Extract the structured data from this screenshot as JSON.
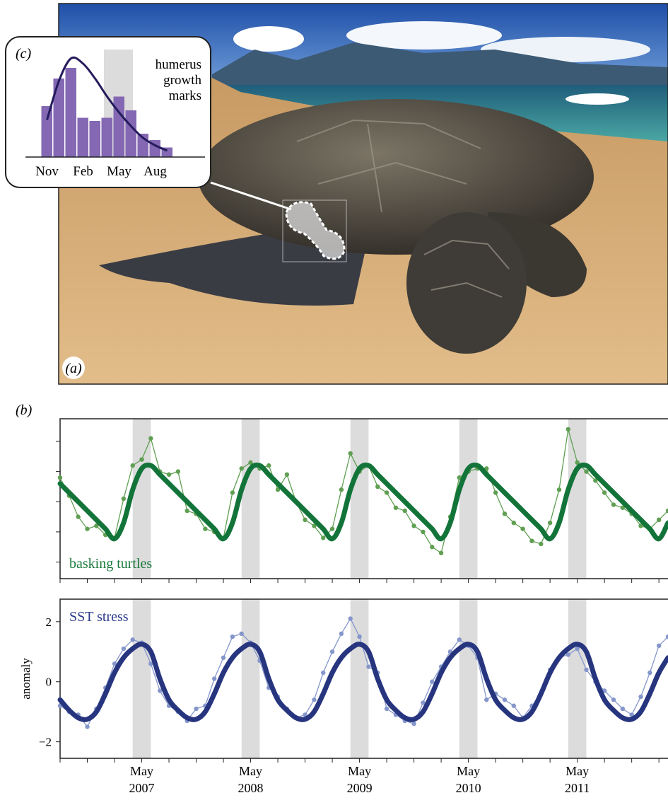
{
  "photo": {
    "label": "(a)"
  },
  "chart_data": [
    {
      "type": "bar",
      "panel_label": "(c)",
      "annotation": [
        "humerus",
        "growth",
        "marks"
      ],
      "categories": [
        "Nov",
        null,
        null,
        "Feb",
        null,
        null,
        "May",
        null,
        null,
        "Aug",
        null
      ],
      "values": [
        48,
        74,
        84,
        37,
        34,
        37,
        57,
        44,
        22,
        16,
        9
      ],
      "fit": [
        35,
        72,
        93,
        88,
        74,
        57,
        42,
        29,
        18,
        11,
        6
      ],
      "color": "#8468b3",
      "fit_color": "#241c5c"
    },
    {
      "type": "line",
      "panel_label": "(b)",
      "label": "basking turtles",
      "color": "#5f9f52",
      "fit_color": "#13743a",
      "label_color": "#1a7a3c",
      "xlim": [
        "2006-08",
        "2012-03"
      ],
      "ylim": [
        -2.55,
        2.75
      ],
      "yticks": [
        -2,
        -1,
        0,
        1,
        2
      ],
      "show_tick_labels": false,
      "shaded_periods": [
        [
          "2007-04",
          "2007-06"
        ],
        [
          "2008-04",
          "2008-06"
        ],
        [
          "2009-04",
          "2009-06"
        ],
        [
          "2010-04",
          "2010-06"
        ],
        [
          "2011-04",
          "2011-06"
        ]
      ],
      "xticks": [
        "2006-08",
        "2006-11",
        "2007-02",
        "2007-05",
        "2007-08",
        "2007-11",
        "2008-02",
        "2008-05",
        "2008-08",
        "2008-11",
        "2009-02",
        "2009-05",
        "2009-08",
        "2009-11",
        "2010-02",
        "2010-05",
        "2010-08",
        "2010-11",
        "2011-02",
        "2011-05",
        "2011-08",
        "2011-11",
        "2012-02"
      ],
      "x": [
        "2006-08",
        "2006-09",
        "2006-10",
        "2006-11",
        "2006-12",
        "2007-01",
        "2007-02",
        "2007-03",
        "2007-04",
        "2007-05",
        "2007-06",
        "2007-07",
        "2007-08",
        "2007-09",
        "2007-10",
        "2007-11",
        "2007-12",
        "2008-01",
        "2008-02",
        "2008-03",
        "2008-04",
        "2008-05",
        "2008-06",
        "2008-07",
        "2008-08",
        "2008-09",
        "2008-10",
        "2008-11",
        "2008-12",
        "2009-01",
        "2009-02",
        "2009-03",
        "2009-04",
        "2009-05",
        "2009-06",
        "2009-07",
        "2009-08",
        "2009-09",
        "2009-10",
        "2009-11",
        "2009-12",
        "2010-01",
        "2010-02",
        "2010-03",
        "2010-04",
        "2010-05",
        "2010-06",
        "2010-07",
        "2010-08",
        "2010-09",
        "2010-10",
        "2010-11",
        "2010-12",
        "2011-01",
        "2011-02",
        "2011-03",
        "2011-04",
        "2011-05",
        "2011-06",
        "2011-07",
        "2011-08",
        "2011-09",
        "2011-10",
        "2011-11",
        "2011-12",
        "2012-01",
        "2012-02",
        "2012-03"
      ],
      "values": [
        0.8,
        0.2,
        -0.5,
        -0.9,
        -0.8,
        -1.1,
        -1.2,
        0.1,
        1.2,
        1.4,
        2.1,
        1.0,
        0.9,
        1.0,
        -0.3,
        -0.4,
        -0.9,
        -1.0,
        -1.2,
        0.3,
        1.1,
        1.3,
        1.1,
        1.2,
        0.4,
        0.9,
        0.0,
        -0.6,
        -0.8,
        -1.2,
        -0.9,
        0.4,
        1.6,
        1.0,
        1.2,
        0.5,
        0.3,
        -0.2,
        -0.3,
        -0.8,
        -1.0,
        -1.5,
        -1.7,
        -0.5,
        0.8,
        1.0,
        1.1,
        1.1,
        0.3,
        -0.4,
        -0.7,
        -0.9,
        -1.3,
        -1.4,
        -0.7,
        0.4,
        2.4,
        1.3,
        1.0,
        0.7,
        0.3,
        -0.1,
        -0.2,
        -0.4,
        -0.8,
        -0.9,
        -0.6,
        -0.3
      ],
      "fit": [
        0.6,
        0.3,
        0.0,
        -0.3,
        -0.6,
        -0.9,
        -1.23,
        -0.7,
        0.4,
        1.1,
        1.2,
        0.9,
        0.6,
        0.3,
        0.0,
        -0.3,
        -0.6,
        -0.9,
        -1.23,
        -0.7,
        0.4,
        1.1,
        1.2,
        0.9,
        0.6,
        0.3,
        0.0,
        -0.3,
        -0.6,
        -0.9,
        -1.23,
        -0.7,
        0.4,
        1.1,
        1.2,
        0.9,
        0.6,
        0.3,
        0.0,
        -0.3,
        -0.6,
        -0.9,
        -1.23,
        -0.7,
        0.4,
        1.1,
        1.2,
        0.9,
        0.6,
        0.3,
        0.0,
        -0.3,
        -0.6,
        -0.9,
        -1.23,
        -0.7,
        0.4,
        1.1,
        1.2,
        0.9,
        0.6,
        0.3,
        0.0,
        -0.3,
        -0.6,
        -0.9,
        -1.23,
        -0.7
      ]
    },
    {
      "type": "line",
      "label": "SST stress",
      "ylabel": "anomaly",
      "color": "#8596cb",
      "fit_color": "#27357f",
      "label_color": "#2b3a8c",
      "xlim": [
        "2006-08",
        "2012-03"
      ],
      "ylim": [
        -2.55,
        2.75
      ],
      "yticks": [
        {
          "value": -2,
          "label": "−2"
        },
        0,
        2
      ],
      "show_tick_labels": true,
      "shaded_periods": [
        [
          "2007-04",
          "2007-06"
        ],
        [
          "2008-04",
          "2008-06"
        ],
        [
          "2009-04",
          "2009-06"
        ],
        [
          "2010-04",
          "2010-06"
        ],
        [
          "2011-04",
          "2011-06"
        ]
      ],
      "xticks": [
        "2006-08",
        "2006-11",
        "2007-02",
        {
          "value": "2007-05",
          "label": "May 2007"
        },
        "2007-08",
        "2007-11",
        "2008-02",
        {
          "value": "2008-05",
          "label": "May 2008"
        },
        "2008-08",
        "2008-11",
        "2009-02",
        {
          "value": "2009-05",
          "label": "May 2009"
        },
        "2009-08",
        "2009-11",
        "2010-02",
        {
          "value": "2010-05",
          "label": "May 2010"
        },
        "2010-08",
        "2010-11",
        "2011-02",
        {
          "value": "2011-05",
          "label": "May 2011"
        },
        "2011-08",
        "2011-11",
        "2012-02"
      ],
      "x": [
        "2006-08",
        "2006-09",
        "2006-10",
        "2006-11",
        "2006-12",
        "2007-01",
        "2007-02",
        "2007-03",
        "2007-04",
        "2007-05",
        "2007-06",
        "2007-07",
        "2007-08",
        "2007-09",
        "2007-10",
        "2007-11",
        "2007-12",
        "2008-01",
        "2008-02",
        "2008-03",
        "2008-04",
        "2008-05",
        "2008-06",
        "2008-07",
        "2008-08",
        "2008-09",
        "2008-10",
        "2008-11",
        "2008-12",
        "2009-01",
        "2009-02",
        "2009-03",
        "2009-04",
        "2009-05",
        "2009-06",
        "2009-07",
        "2009-08",
        "2009-09",
        "2009-10",
        "2009-11",
        "2009-12",
        "2010-01",
        "2010-02",
        "2010-03",
        "2010-04",
        "2010-05",
        "2010-06",
        "2010-07",
        "2010-08",
        "2010-09",
        "2010-10",
        "2010-11",
        "2010-12",
        "2011-01",
        "2011-02",
        "2011-03",
        "2011-04",
        "2011-05",
        "2011-06",
        "2011-07",
        "2011-08",
        "2011-09",
        "2011-10",
        "2011-11",
        "2011-12",
        "2012-01",
        "2012-02",
        "2012-03"
      ],
      "values": [
        -0.8,
        -1.0,
        -1.1,
        -1.5,
        -0.9,
        -0.2,
        0.6,
        1.1,
        1.4,
        1.3,
        0.6,
        -0.3,
        -0.8,
        -1.0,
        -1.3,
        -0.9,
        -0.8,
        0.1,
        0.8,
        1.5,
        1.6,
        1.3,
        0.7,
        -0.2,
        -0.5,
        -0.9,
        -1.2,
        -1.1,
        -0.6,
        0.3,
        1.0,
        1.6,
        2.1,
        1.5,
        0.5,
        0.3,
        -0.9,
        -1.1,
        -1.3,
        -1.4,
        -0.7,
        0.0,
        0.5,
        1.0,
        1.4,
        1.2,
        0.8,
        -0.6,
        -0.4,
        -0.6,
        -0.8,
        -1.2,
        -0.8,
        -0.4,
        0.4,
        0.8,
        0.9,
        1.1,
        0.4,
        0.0,
        -0.3,
        -0.6,
        -0.9,
        -1.1,
        -0.5,
        0.3,
        1.2,
        1.5
      ],
      "fit": [
        -0.6,
        -0.95,
        -1.2,
        -1.25,
        -1.0,
        -0.4,
        0.3,
        0.8,
        1.1,
        1.25,
        1.0,
        0.1,
        -0.6,
        -0.95,
        -1.2,
        -1.25,
        -1.0,
        -0.4,
        0.3,
        0.8,
        1.1,
        1.25,
        1.0,
        0.1,
        -0.6,
        -0.95,
        -1.2,
        -1.25,
        -1.0,
        -0.4,
        0.3,
        0.8,
        1.1,
        1.25,
        1.0,
        0.1,
        -0.6,
        -0.95,
        -1.2,
        -1.25,
        -1.0,
        -0.4,
        0.3,
        0.8,
        1.1,
        1.25,
        1.0,
        0.1,
        -0.6,
        -0.95,
        -1.2,
        -1.25,
        -1.0,
        -0.4,
        0.3,
        0.8,
        1.1,
        1.25,
        1.0,
        0.1,
        -0.6,
        -0.95,
        -1.2,
        -1.25,
        -1.0,
        -0.4,
        0.3,
        0.8
      ]
    }
  ]
}
